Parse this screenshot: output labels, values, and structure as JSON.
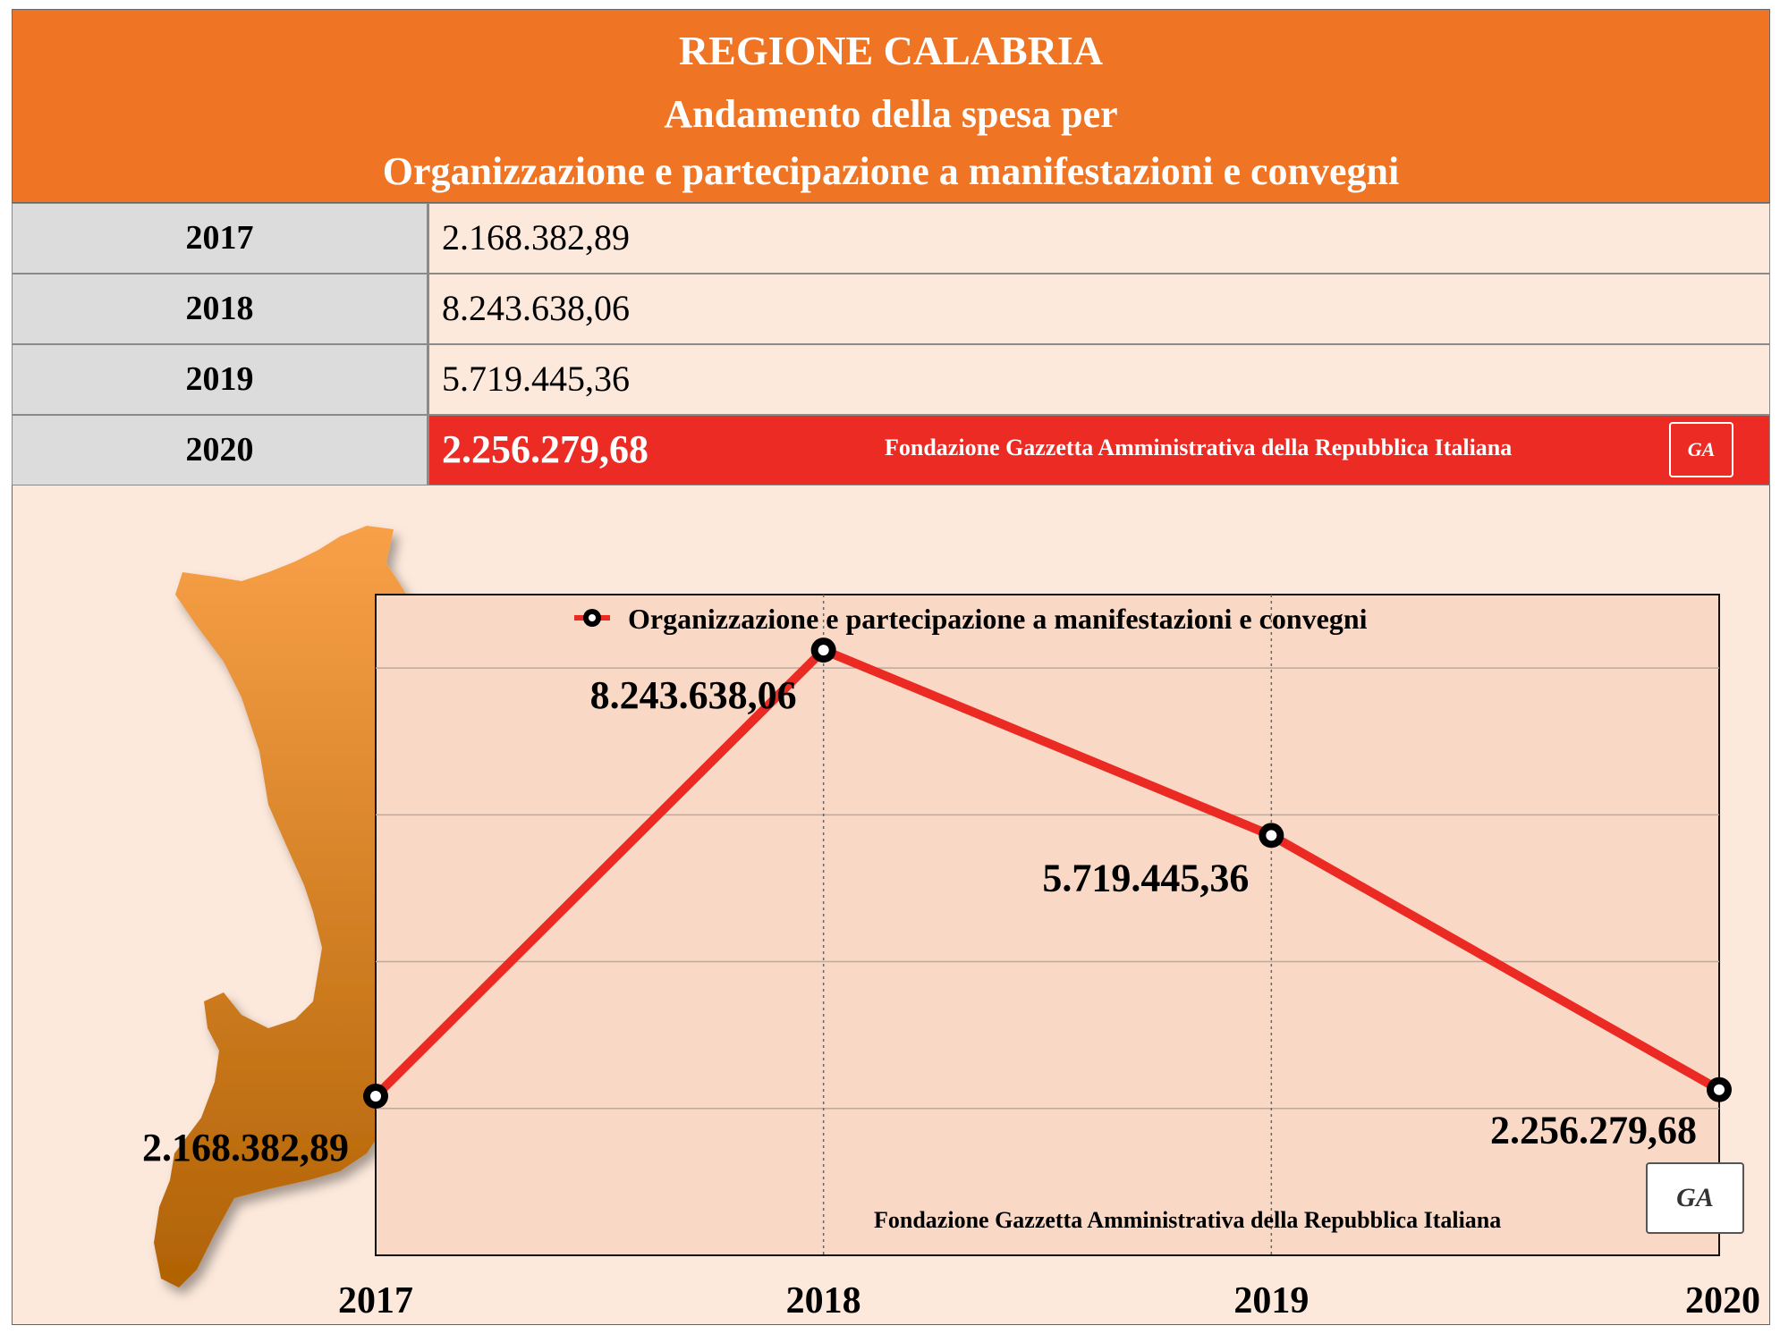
{
  "header": {
    "line1": "REGIONE CALABRIA",
    "line2": "Andamento della spesa per",
    "line3": "Organizzazione e partecipazione a manifestazioni e convegni"
  },
  "table": {
    "rows": [
      {
        "year": "2017",
        "value": "2.168.382,89"
      },
      {
        "year": "2018",
        "value": "8.243.638,06"
      },
      {
        "year": "2019",
        "value": "5.719.445,36"
      },
      {
        "year": "2020",
        "value": "2.256.279,68"
      }
    ]
  },
  "footer_text": "Fondazione Gazzetta Amministrativa della Repubblica Italiana",
  "seal_text": "GA",
  "colors": {
    "header": "#ef7423",
    "highlight": "#eb2b24",
    "line": "#ec2a24",
    "plot_bg": "#f9d9c6",
    "map_top": "#f8a048",
    "map_bottom": "#b06204"
  },
  "chart_data": {
    "type": "line",
    "categories": [
      "2017",
      "2018",
      "2019",
      "2020"
    ],
    "series": [
      {
        "name": "Organizzazione e partecipazione a manifestazioni e convegni",
        "values": [
          2168382.89,
          8243638.06,
          5719445.36,
          2256279.68
        ],
        "labels": [
          "2.168.382,89",
          "8.243.638,06",
          "5.719.445,36",
          "2.256.279,68"
        ]
      }
    ],
    "ylim": [
      0,
      9000000
    ],
    "grid": true,
    "legend": "top-center"
  }
}
